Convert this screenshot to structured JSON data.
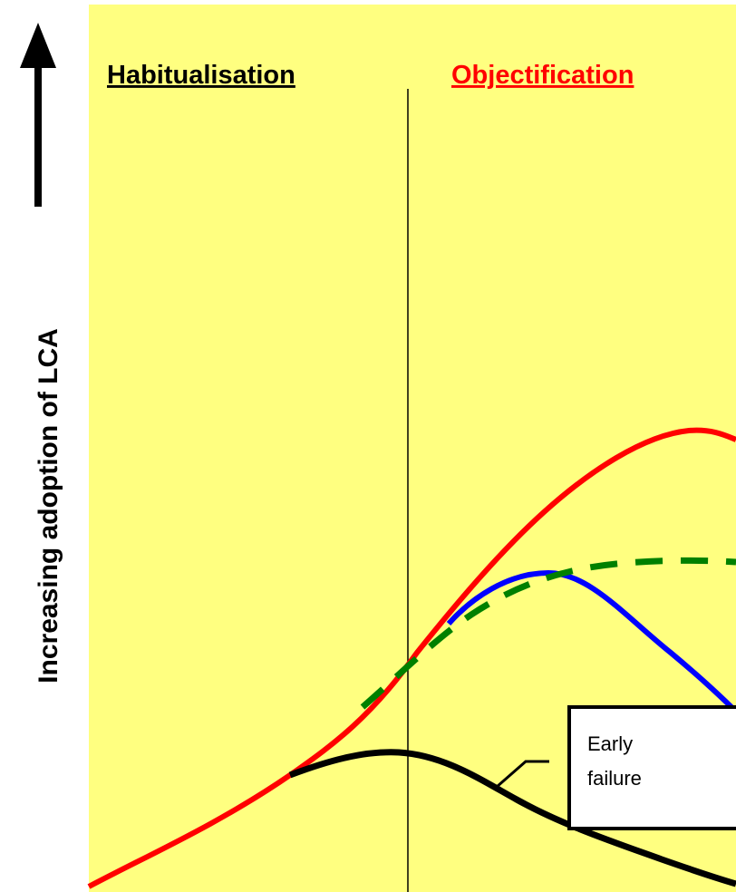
{
  "header": {
    "left_title": "Habitualisation",
    "right_title": "Objectification"
  },
  "axis_label": "Increasing adoption of LCA",
  "callout": {
    "lines": [
      "Early",
      "failure"
    ]
  }
}
